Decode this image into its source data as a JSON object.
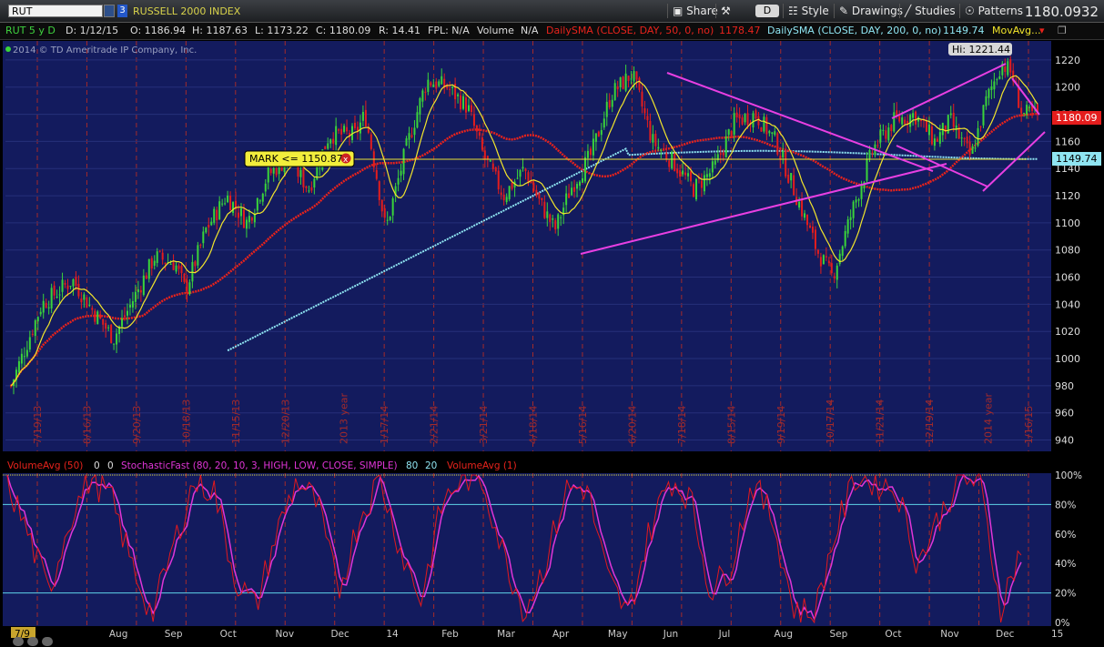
{
  "toolbar": {
    "symbol": "RUT",
    "link_number": "3",
    "index_name": "RUSSELL 2000 INDEX",
    "share_label": "Share",
    "period_label": "D",
    "style_label": "Style",
    "drawings_label": "Drawings",
    "studies_label": "Studies",
    "patterns_label": "Patterns",
    "last_price": "1180.0932"
  },
  "info_bar": {
    "title": "RUT 5 y D",
    "date": "D: 1/12/15",
    "open": "O: 1186.94",
    "high": "H: 1187.63",
    "low": "L: 1173.22",
    "close": "C: 1180.09",
    "range": "R: 14.41",
    "fpl_label": "FPL: N/A",
    "volume_label": "Volume",
    "volume_value": "N/A",
    "sma50_label": "DailySMA (CLOSE, DAY, 50, 0, no)",
    "sma50_value": "1178.47",
    "sma200_label": "DailySMA (CLOSE, DAY, 200, 0, no)",
    "sma200_value": "1149.74",
    "movavg_label": "MovAvg..."
  },
  "copyright": "2014 © TD Ameritrade IP Company, Inc.",
  "price_labels": {
    "high_marker": "Hi: 1221.44",
    "last_close": "1180.09",
    "sma200": "1149.74",
    "mark_label": "MARK <= 1150.87"
  },
  "lower_panel": {
    "volume_avg": "VolumeAvg (50)",
    "vol_val1": "0",
    "vol_val2": "0",
    "stoch_label": "StochasticFast (80, 20, 10, 3, HIGH, LOW, CLOSE, SIMPLE)",
    "stoch_val1": "80",
    "stoch_val2": "20",
    "volume_avg1": "VolumeAvg (1)"
  },
  "colors": {
    "chart_bg": "#131b5e",
    "grid_red": "#a32a2a",
    "sma50": "#e8231c",
    "sma200": "#8fe5f2",
    "ma_short": "#f2e52b",
    "trendline": "#e83fe2",
    "candle_up": "#3ad43a",
    "candle_down": "#e41d1d",
    "stoch_k": "#e3191d",
    "stoch_d": "#e035d8"
  },
  "chart_data": [
    {
      "type": "candlestick",
      "title": "RUT 5 y D",
      "y_ticks": [
        940,
        960,
        980,
        1000,
        1020,
        1040,
        1060,
        1080,
        1100,
        1120,
        1140,
        1160,
        1180,
        1200,
        1220
      ],
      "ylim": [
        933,
        1232
      ],
      "vertical_date_labels": [
        "7/19/13",
        "8/16/13",
        "9/20/13",
        "10/18/13",
        "11/15/13",
        "12/20/13",
        "2013 year",
        "1/17/14",
        "2/21/14",
        "3/21/14",
        "4/18/14",
        "5/16/14",
        "6/20/14",
        "7/18/14",
        "8/15/14",
        "9/19/14",
        "10/17/14",
        "11/21/14",
        "12/19/14",
        "2014 year",
        "1/16/15"
      ],
      "x_axis_labels": [
        "7/9",
        "Aug",
        "Sep",
        "Oct",
        "Nov",
        "Dec",
        "14",
        "Feb",
        "Mar",
        "Apr",
        "May",
        "Jun",
        "Jul",
        "Aug",
        "Sep",
        "Oct",
        "Nov",
        "Dec",
        "15"
      ],
      "price_path": [
        [
          0,
          980
        ],
        [
          0.03,
          1040
        ],
        [
          0.06,
          1058
        ],
        [
          0.08,
          1035
        ],
        [
          0.1,
          1015
        ],
        [
          0.12,
          1045
        ],
        [
          0.14,
          1075
        ],
        [
          0.16,
          1070
        ],
        [
          0.17,
          1050
        ],
        [
          0.19,
          1095
        ],
        [
          0.21,
          1120
        ],
        [
          0.23,
          1100
        ],
        [
          0.25,
          1135
        ],
        [
          0.27,
          1148
        ],
        [
          0.29,
          1125
        ],
        [
          0.31,
          1165
        ],
        [
          0.335,
          1165
        ],
        [
          0.345,
          1180
        ],
        [
          0.355,
          1140
        ],
        [
          0.365,
          1095
        ],
        [
          0.385,
          1155
        ],
        [
          0.405,
          1205
        ],
        [
          0.425,
          1200
        ],
        [
          0.445,
          1185
        ],
        [
          0.46,
          1150
        ],
        [
          0.48,
          1120
        ],
        [
          0.5,
          1140
        ],
        [
          0.515,
          1115
        ],
        [
          0.53,
          1095
        ],
        [
          0.545,
          1125
        ],
        [
          0.565,
          1150
        ],
        [
          0.585,
          1195
        ],
        [
          0.605,
          1210
        ],
        [
          0.625,
          1160
        ],
        [
          0.645,
          1145
        ],
        [
          0.665,
          1125
        ],
        [
          0.685,
          1140
        ],
        [
          0.705,
          1175
        ],
        [
          0.725,
          1180
        ],
        [
          0.745,
          1160
        ],
        [
          0.765,
          1120
        ],
        [
          0.785,
          1080
        ],
        [
          0.8,
          1060
        ],
        [
          0.82,
          1110
        ],
        [
          0.84,
          1155
        ],
        [
          0.86,
          1175
        ],
        [
          0.88,
          1180
        ],
        [
          0.9,
          1160
        ],
        [
          0.915,
          1175
        ],
        [
          0.935,
          1148
        ],
        [
          0.95,
          1190
        ],
        [
          0.965,
          1218
        ],
        [
          0.975,
          1210
        ],
        [
          0.985,
          1180
        ]
      ],
      "high_marker": 1221.44,
      "last_close": 1180.09,
      "sma200_last": 1149.74,
      "mark_price": 1150.87,
      "annotations": [
        "descending trendline from Jul 2014 high",
        "ascending trendline from May 2014 low",
        "rising wedge Nov 2014 - Jan 2015"
      ]
    },
    {
      "type": "line",
      "title": "StochasticFast (80, 20, 10, 3, HIGH, LOW, CLOSE, SIMPLE)",
      "y_ticks": [
        "0%",
        "20%",
        "40%",
        "60%",
        "80%",
        "100%"
      ],
      "ylim": [
        0,
        100
      ],
      "reference_lines": [
        80,
        20
      ],
      "series": [
        {
          "name": "%K",
          "values": [
            95,
            60,
            20,
            70,
            98,
            85,
            40,
            5,
            50,
            95,
            90,
            30,
            10,
            60,
            97,
            80,
            20,
            70,
            98,
            50,
            15,
            80,
            99,
            96,
            45,
            8,
            40,
            90,
            92,
            30,
            5,
            60,
            98,
            85,
            20,
            40,
            95,
            70,
            10,
            5,
            60,
            99,
            95,
            90,
            40,
            70,
            98,
            95,
            10,
            50
          ]
        }
      ]
    }
  ]
}
